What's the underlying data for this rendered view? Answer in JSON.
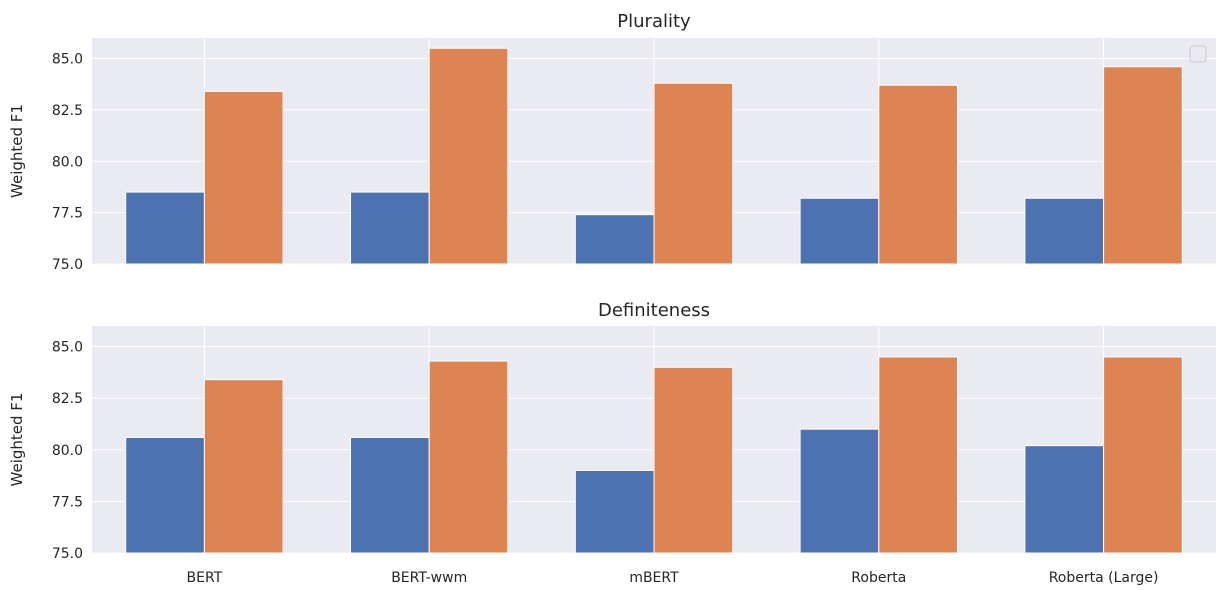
{
  "chart_data": [
    {
      "type": "bar",
      "title": "Plurality",
      "ylabel": "Weighted F1",
      "xlabel": "",
      "categories": [
        "BERT",
        "BERT-wwm",
        "mBERT",
        "Roberta",
        "Roberta (Large)"
      ],
      "series": [
        {
          "values": [
            78.5,
            78.5,
            77.4,
            78.2,
            78.2
          ]
        },
        {
          "values": [
            83.4,
            85.5,
            83.8,
            83.7,
            84.6
          ]
        }
      ],
      "ylim": [
        75.0,
        86.0
      ],
      "yticks": [
        "75.0",
        "77.5",
        "80.0",
        "82.5",
        "85.0"
      ],
      "show_xtick_labels": false,
      "grid": true,
      "legend": "top-right",
      "legend_entries": []
    },
    {
      "type": "bar",
      "title": "Definiteness",
      "ylabel": "Weighted F1",
      "xlabel": "",
      "categories": [
        "BERT",
        "BERT-wwm",
        "mBERT",
        "Roberta",
        "Roberta (Large)"
      ],
      "series": [
        {
          "values": [
            80.6,
            80.6,
            79.0,
            81.0,
            80.2
          ]
        },
        {
          "values": [
            83.4,
            84.3,
            84.0,
            84.5,
            84.5
          ]
        }
      ],
      "ylim": [
        75.0,
        86.0
      ],
      "yticks": [
        "75.0",
        "77.5",
        "80.0",
        "82.5",
        "85.0"
      ],
      "show_xtick_labels": true,
      "grid": true
    }
  ],
  "colors": {
    "background": "#eaeaf2",
    "grid": "#ffffff",
    "series": [
      "#4c72b0",
      "#dd8452"
    ]
  }
}
